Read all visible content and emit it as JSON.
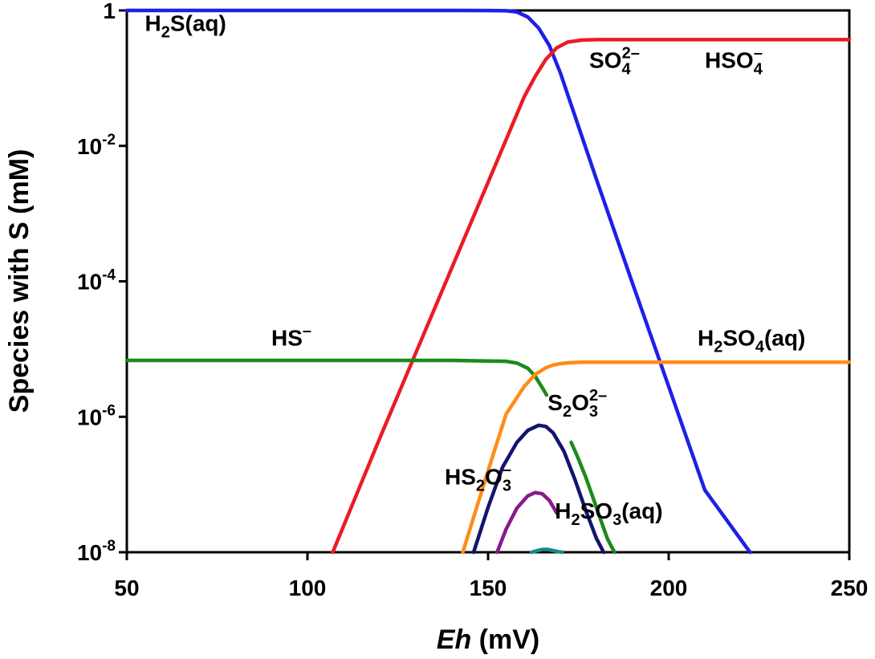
{
  "chart_data": {
    "type": "line",
    "xlabel": {
      "italic": "Eh",
      "rest": " (mV)"
    },
    "ylabel": "Species with S (mM)",
    "xlim": [
      50,
      250
    ],
    "ylim_log10": [
      -8,
      0
    ],
    "y_scale": "log",
    "grid": false,
    "x_ticks": [
      50,
      100,
      150,
      200,
      250
    ],
    "y_ticks": [
      {
        "value": 1,
        "base": "1",
        "exp": ""
      },
      {
        "value": 0.01,
        "base": "10",
        "exp": "-2"
      },
      {
        "value": 0.0001,
        "base": "10",
        "exp": "-4"
      },
      {
        "value": 1e-06,
        "base": "10",
        "exp": "-6"
      },
      {
        "value": 1e-08,
        "base": "10",
        "exp": "-8"
      }
    ],
    "series": [
      {
        "key": "h2s",
        "color": "#1f1fe6",
        "x": [
          50,
          100,
          140,
          150,
          155,
          158,
          161,
          164,
          167,
          170,
          180,
          190,
          200,
          210,
          222.5
        ],
        "y": [
          1,
          1,
          1,
          0.998,
          0.99,
          0.95,
          0.8,
          0.55,
          0.3,
          0.12,
          0.0032,
          9.3e-05,
          2.8e-06,
          8.3e-08,
          1e-08
        ]
      },
      {
        "key": "so4",
        "color": "#ea1c24",
        "x": [
          107,
          120,
          130,
          140,
          150,
          160,
          163,
          166,
          169,
          172,
          176,
          180,
          200,
          250
        ],
        "y": [
          1e-08,
          4.8e-07,
          8.8e-06,
          0.00016,
          0.0029,
          0.053,
          0.105,
          0.19,
          0.28,
          0.34,
          0.365,
          0.37,
          0.37,
          0.37
        ]
      },
      {
        "key": "hs",
        "color": "#1c8a1c",
        "x": [
          50,
          140,
          155,
          158,
          161,
          163,
          165,
          166.2
        ],
        "y": [
          6.8e-06,
          6.8e-06,
          6.6e-06,
          6.2e-06,
          5.2e-06,
          4e-06,
          2.7e-06,
          2.1e-06
        ]
      },
      {
        "key": "h2so4",
        "color": "#ff8c1a",
        "x": [
          143,
          150,
          155,
          160,
          163,
          166,
          168,
          170,
          173,
          176,
          180,
          250
        ],
        "y": [
          1e-08,
          1.6e-07,
          1.1e-06,
          2.8e-06,
          4.2e-06,
          5.3e-06,
          5.8e-06,
          6.1e-06,
          6.3e-06,
          6.4e-06,
          6.4e-06,
          6.4e-06
        ]
      },
      {
        "key": "s2o3",
        "color": "#14146e",
        "x": [
          146,
          150,
          154,
          158,
          161,
          164,
          166,
          168,
          171,
          174,
          177,
          180,
          182
        ],
        "y": [
          1e-08,
          4.6e-08,
          1.8e-07,
          4.2e-07,
          6.3e-07,
          7.5e-07,
          7.2e-07,
          5.8e-07,
          3.1e-07,
          1.2e-07,
          4.2e-08,
          1.6e-08,
          1e-08
        ]
      },
      {
        "key": "hs2o3",
        "color": "#8a1a8a",
        "x": [
          152.5,
          155,
          158,
          161,
          163,
          165,
          167,
          169
        ],
        "y": [
          1e-08,
          2.2e-08,
          4.5e-08,
          6.8e-08,
          7.6e-08,
          7.3e-08,
          5.8e-08,
          3.8e-08
        ]
      },
      {
        "key": "s2o3_tail",
        "color": "#1c8a1c",
        "x": [
          173,
          175,
          177,
          179,
          181,
          183,
          185
        ],
        "y": [
          4.2e-07,
          2.4e-07,
          1.3e-07,
          6.5e-08,
          3.2e-08,
          1.6e-08,
          1e-08
        ]
      },
      {
        "key": "h2so3",
        "color": "#138a8a",
        "x": [
          162,
          163.5,
          165,
          166.5,
          168,
          169.5,
          170.5
        ],
        "y": [
          1e-08,
          1.05e-08,
          1.1e-08,
          1.1e-08,
          1.06e-08,
          1.02e-08,
          1e-08
        ]
      }
    ],
    "labels": [
      {
        "key": "h2s",
        "x": 55,
        "y_log": -0.3,
        "parts": [
          [
            "H",
            ""
          ],
          [
            "2",
            "sub"
          ],
          [
            "S(aq)",
            ""
          ]
        ]
      },
      {
        "key": "so4",
        "x": 178,
        "y_log": -0.85,
        "parts": [
          [
            "SO",
            ""
          ],
          [
            "4",
            "sub"
          ],
          [
            "2–",
            "sup"
          ]
        ]
      },
      {
        "key": "hso4",
        "x": 210,
        "y_log": -0.85,
        "parts": [
          [
            "HSO",
            ""
          ],
          [
            "4",
            "sub"
          ],
          [
            "–",
            "sup"
          ]
        ]
      },
      {
        "key": "hs",
        "x": 90,
        "y_log": -4.95,
        "parts": [
          [
            "HS",
            ""
          ],
          [
            "–",
            "sup"
          ]
        ]
      },
      {
        "key": "h2so4",
        "x": 208,
        "y_log": -4.95,
        "parts": [
          [
            "H",
            ""
          ],
          [
            "2",
            "sub"
          ],
          [
            "SO",
            ""
          ],
          [
            "4",
            "sub"
          ],
          [
            "(aq)",
            ""
          ]
        ]
      },
      {
        "key": "s2o3",
        "x": 166.5,
        "y_log": -5.9,
        "parts": [
          [
            "S",
            ""
          ],
          [
            "2",
            "sub"
          ],
          [
            "O",
            ""
          ],
          [
            "3",
            "sub"
          ],
          [
            "2–",
            "sup"
          ]
        ]
      },
      {
        "key": "hs2o3",
        "x": 138,
        "y_log": -7.0,
        "parts": [
          [
            "HS",
            ""
          ],
          [
            "2",
            "sub"
          ],
          [
            "O",
            ""
          ],
          [
            "3",
            "sub"
          ],
          [
            "–",
            "sup"
          ]
        ]
      },
      {
        "key": "h2so3",
        "x": 168.5,
        "y_log": -7.5,
        "parts": [
          [
            "H",
            ""
          ],
          [
            "2",
            "sub"
          ],
          [
            "SO",
            ""
          ],
          [
            "3",
            "sub"
          ],
          [
            "(aq)",
            ""
          ]
        ]
      }
    ]
  }
}
